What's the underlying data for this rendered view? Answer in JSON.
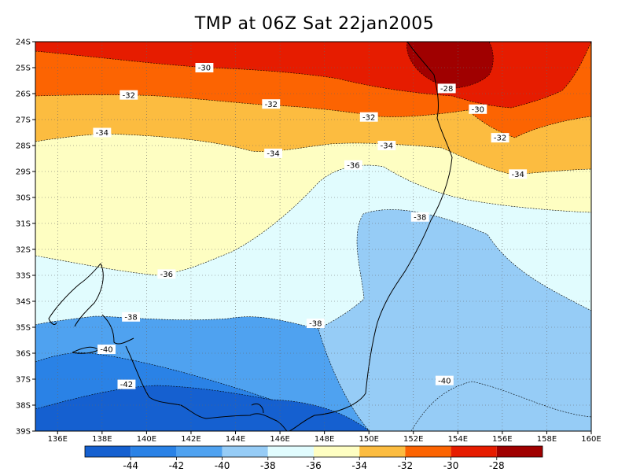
{
  "title": "TMP at 06Z Sat 22jan2005",
  "map": {
    "lon_range": [
      135,
      160
    ],
    "lat_range": [
      -39,
      -24
    ],
    "lon_ticks": [
      "136E",
      "138E",
      "140E",
      "142E",
      "144E",
      "146E",
      "148E",
      "150E",
      "152E",
      "154E",
      "156E",
      "158E",
      "160E"
    ],
    "lat_ticks": [
      "24S",
      "25S",
      "26S",
      "27S",
      "28S",
      "29S",
      "30S",
      "31S",
      "32S",
      "33S",
      "34S",
      "35S",
      "36S",
      "37S",
      "38S",
      "39S"
    ],
    "grid": "dotted"
  },
  "contour_labels": [
    {
      "text": "-30",
      "lon": 142.6,
      "lat": -25.0
    },
    {
      "text": "-28",
      "lon": 153.5,
      "lat": -25.8
    },
    {
      "text": "-32",
      "lon": 139.2,
      "lat": -26.05
    },
    {
      "text": "-32",
      "lon": 145.6,
      "lat": -26.4
    },
    {
      "text": "-30",
      "lon": 154.9,
      "lat": -26.6
    },
    {
      "text": "-32",
      "lon": 150.0,
      "lat": -26.9
    },
    {
      "text": "-34",
      "lon": 138.0,
      "lat": -27.5
    },
    {
      "text": "-32",
      "lon": 155.9,
      "lat": -27.7
    },
    {
      "text": "-34",
      "lon": 150.8,
      "lat": -28.0
    },
    {
      "text": "-34",
      "lon": 145.7,
      "lat": -28.3
    },
    {
      "text": "-36",
      "lon": 149.3,
      "lat": -28.75
    },
    {
      "text": "-34",
      "lon": 156.7,
      "lat": -29.1
    },
    {
      "text": "-38",
      "lon": 152.3,
      "lat": -30.75
    },
    {
      "text": "-36",
      "lon": 140.9,
      "lat": -32.95
    },
    {
      "text": "-38",
      "lon": 139.3,
      "lat": -34.6
    },
    {
      "text": "-38",
      "lon": 147.6,
      "lat": -34.85
    },
    {
      "text": "-40",
      "lon": 138.2,
      "lat": -35.85
    },
    {
      "text": "-40",
      "lon": 153.4,
      "lat": -37.05
    },
    {
      "text": "-42",
      "lon": 139.1,
      "lat": -37.2
    }
  ],
  "colorbar": {
    "labels": [
      "-44",
      "-42",
      "-40",
      "-38",
      "-36",
      "-34",
      "-32",
      "-30",
      "-28"
    ],
    "colors": [
      "#1560d0",
      "#2a82e6",
      "#4fa2f0",
      "#96ccf6",
      "#e1fcfe",
      "#fefec2",
      "#fcbc40",
      "#fc6402",
      "#e61c00",
      "#a00000"
    ]
  }
}
